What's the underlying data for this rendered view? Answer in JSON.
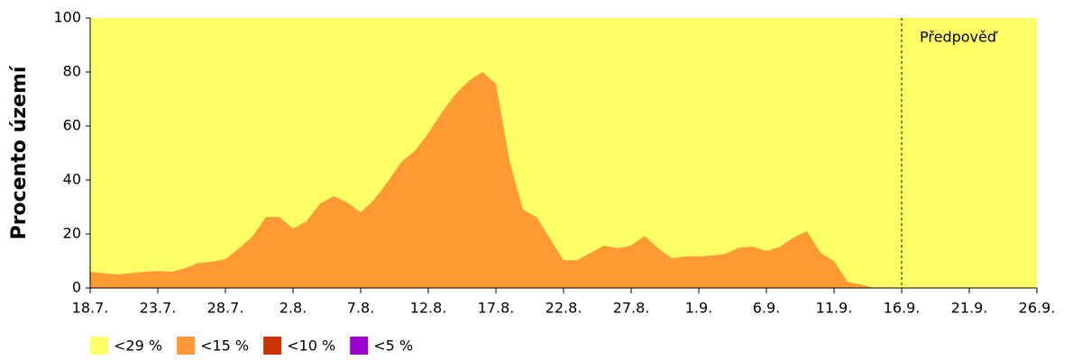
{
  "chart_data": {
    "type": "area",
    "y_label": "Procento území",
    "categories": [
      "18.7.",
      null,
      null,
      null,
      null,
      "23.7.",
      null,
      null,
      null,
      null,
      "28.7.",
      null,
      null,
      null,
      null,
      "2.8.",
      null,
      null,
      null,
      null,
      "7.8.",
      null,
      null,
      null,
      null,
      "12.8.",
      null,
      null,
      null,
      null,
      "17.8.",
      null,
      null,
      null,
      null,
      "22.8.",
      null,
      null,
      null,
      null,
      "27.8.",
      null,
      null,
      null,
      null,
      "1.9.",
      null,
      null,
      null,
      null,
      "6.9.",
      null,
      null,
      null,
      null,
      "11.9.",
      null,
      null,
      null,
      null,
      "16.9.",
      null,
      null,
      null,
      null,
      "21.9.",
      null,
      null,
      null,
      null,
      "26.9."
    ],
    "series": [
      {
        "name": "<29 %",
        "color": "#ffff66",
        "values": [
          100,
          100,
          100,
          100,
          100,
          100,
          100,
          100,
          100,
          100,
          100,
          100,
          100,
          100,
          100,
          100,
          100,
          100,
          100,
          100,
          100,
          100,
          100,
          100,
          100,
          100,
          100,
          100,
          100,
          100,
          100,
          100,
          100,
          100,
          100,
          100,
          100,
          100,
          100,
          100,
          100,
          100,
          100,
          100,
          100,
          100,
          100,
          100,
          100,
          100,
          100,
          100,
          100,
          100,
          100,
          100,
          100,
          100,
          100,
          100,
          100,
          100,
          100,
          100,
          100,
          100,
          100,
          100,
          100,
          100,
          100
        ]
      },
      {
        "name": "<15 %",
        "color": "#ff9933",
        "values": [
          6,
          5.5,
          5,
          5.5,
          6,
          6.3,
          6,
          7.3,
          9.3,
          9.7,
          10.7,
          14.7,
          19,
          26.3,
          26.3,
          22,
          24.7,
          31.3,
          34,
          31.7,
          28,
          32.7,
          39.3,
          46.7,
          50.7,
          57.3,
          65,
          71.7,
          76.7,
          80,
          75.7,
          47.3,
          29,
          26.3,
          18.3,
          10.3,
          10.3,
          13,
          15.7,
          14.7,
          15.7,
          19.3,
          14.7,
          11,
          11.7,
          11.7,
          12,
          12.7,
          15,
          15.3,
          13.7,
          15.3,
          18.7,
          21,
          13,
          10,
          2.3,
          1.3,
          0,
          0,
          0,
          0,
          0,
          0,
          0,
          0,
          0,
          0,
          0,
          0,
          0
        ]
      },
      {
        "name": "<10 %",
        "color": "#cc3300",
        "values": [
          0,
          0,
          0,
          0,
          0,
          0,
          0,
          0,
          0,
          0,
          0,
          0,
          0,
          0,
          0,
          0,
          0,
          0,
          0,
          0,
          0,
          0,
          0,
          0,
          0,
          0,
          0,
          0,
          0,
          0,
          0,
          0,
          0,
          0,
          0,
          0,
          0,
          0,
          0,
          0,
          0,
          0,
          0,
          0,
          0,
          0,
          0,
          0,
          0,
          0,
          0,
          0,
          0,
          0,
          0,
          0,
          0,
          0,
          0,
          0,
          0,
          0,
          0,
          0,
          0,
          0,
          0,
          0,
          0,
          0,
          0
        ]
      },
      {
        "name": "<5 %",
        "color": "#9900cc",
        "values": [
          0,
          0,
          0,
          0,
          0,
          0,
          0,
          0,
          0,
          0,
          0,
          0,
          0,
          0,
          0,
          0,
          0,
          0,
          0,
          0,
          0,
          0,
          0,
          0,
          0,
          0,
          0,
          0,
          0,
          0,
          0,
          0,
          0,
          0,
          0,
          0,
          0,
          0,
          0,
          0,
          0,
          0,
          0,
          0,
          0,
          0,
          0,
          0,
          0,
          0,
          0,
          0,
          0,
          0,
          0,
          0,
          0,
          0,
          0,
          0,
          0,
          0,
          0,
          0,
          0,
          0,
          0,
          0,
          0,
          0,
          0
        ]
      }
    ],
    "ylim": [
      0,
      100
    ],
    "yticks": [
      0,
      20,
      40,
      60,
      80,
      100
    ],
    "annotation": {
      "text": "Předpověď",
      "x": "16.9."
    }
  }
}
